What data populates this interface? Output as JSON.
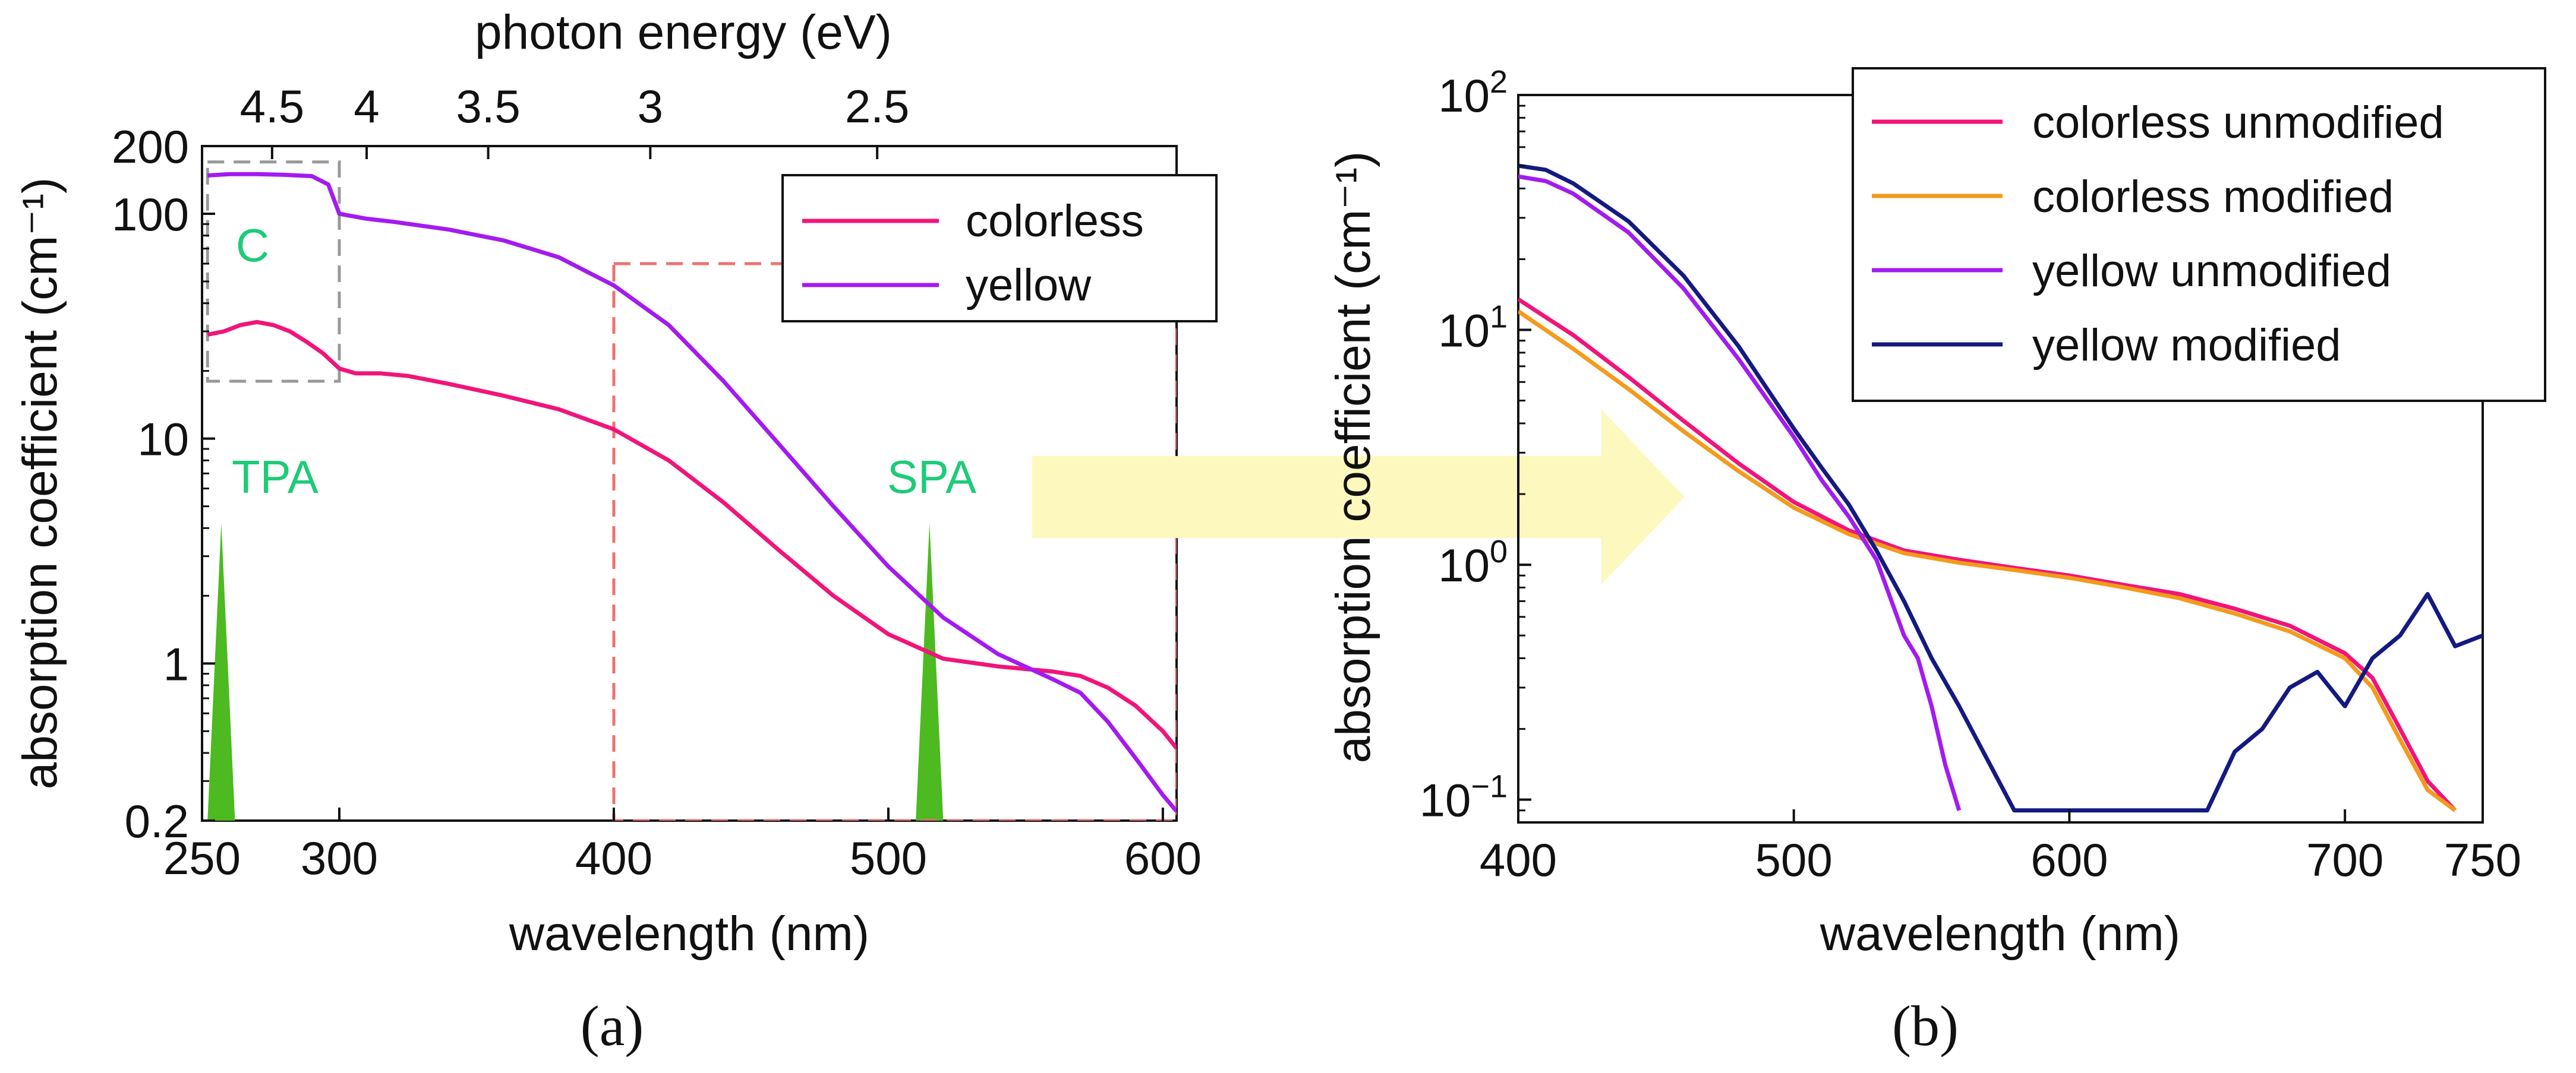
{
  "chart_data": [
    {
      "panel": "(a)",
      "type": "line",
      "xlabel": "wavelength (nm)",
      "ylabel": "absorption coefficient (cm⁻¹)",
      "top_axis_label": "photon energy (eV)",
      "yscale": "log",
      "xlim": [
        250,
        605
      ],
      "ylim": [
        0.2,
        200
      ],
      "x_ticks": [
        250,
        300,
        400,
        500,
        600
      ],
      "x_tick_labels": [
        "250",
        "300",
        "400",
        "500",
        "600"
      ],
      "y_ticks": [
        0.2,
        1,
        10,
        100,
        200
      ],
      "y_tick_labels": [
        "0.2",
        "1",
        "10",
        "100",
        "200"
      ],
      "top_ticks_eV": [
        4.5,
        4,
        3.5,
        3,
        2.5
      ],
      "top_tick_labels": [
        "4.5",
        "4",
        "3.5",
        "3",
        "2.5"
      ],
      "legend": [
        "colorless",
        "yellow"
      ],
      "legend_position": "top-right",
      "series": [
        {
          "name": "colorless",
          "color": "#f0157a",
          "x": [
            252,
            258,
            264,
            270,
            276,
            282,
            288,
            294,
            300,
            306,
            315,
            325,
            340,
            360,
            380,
            400,
            420,
            440,
            460,
            480,
            500,
            520,
            540,
            560,
            570,
            580,
            590,
            600,
            605
          ],
          "y": [
            29,
            30,
            32,
            33,
            32,
            30,
            27,
            24,
            20.5,
            19.5,
            19.5,
            19,
            17.5,
            15.5,
            13.5,
            11,
            8,
            5.2,
            3.2,
            2.0,
            1.35,
            1.05,
            0.97,
            0.92,
            0.88,
            0.78,
            0.65,
            0.5,
            0.42
          ]
        },
        {
          "name": "yellow",
          "color": "#a31bf0",
          "x": [
            252,
            260,
            270,
            280,
            290,
            296,
            300,
            310,
            320,
            340,
            360,
            380,
            400,
            420,
            440,
            460,
            480,
            500,
            520,
            540,
            560,
            570,
            580,
            590,
            600,
            605
          ],
          "y": [
            148,
            150,
            150,
            149,
            147,
            135,
            100,
            95,
            92,
            85,
            76,
            64,
            48,
            32,
            18,
            9.5,
            5.0,
            2.7,
            1.6,
            1.1,
            0.85,
            0.74,
            0.55,
            0.38,
            0.26,
            0.22
          ]
        }
      ],
      "annotations": [
        "C",
        "TPA",
        "SPA"
      ],
      "spectral_lines": [
        {
          "label": "TPA",
          "center_nm": 257,
          "peak": 4.2
        },
        {
          "label": "SPA",
          "center_nm": 515,
          "peak": 4.2
        }
      ],
      "boxes": [
        {
          "name": "C",
          "x": [
            252,
            300
          ],
          "y": [
            18,
            170
          ],
          "color": "#999999"
        },
        {
          "name": "zoom-region",
          "x": [
            400,
            605
          ],
          "y": [
            0.2,
            60
          ],
          "color": "#f07070"
        }
      ]
    },
    {
      "panel": "(b)",
      "type": "line",
      "xlabel": "wavelength (nm)",
      "ylabel": "absorption coefficient (cm⁻¹)",
      "yscale": "log",
      "xlim": [
        400,
        750
      ],
      "ylim": [
        0.08,
        100
      ],
      "x_ticks": [
        400,
        500,
        600,
        700,
        750
      ],
      "x_tick_labels": [
        "400",
        "500",
        "600",
        "700",
        "750"
      ],
      "y_ticks": [
        0.1,
        1,
        10,
        100
      ],
      "y_tick_bases": [
        "10",
        "10",
        "10",
        "10"
      ],
      "y_tick_exponents": [
        "−1",
        "0",
        "1",
        "2"
      ],
      "legend": [
        "colorless unmodified",
        "colorless modified",
        "yellow unmodified",
        "yellow modified"
      ],
      "legend_position": "top-right",
      "series": [
        {
          "name": "colorless unmodified",
          "color": "#f0157a",
          "x": [
            400,
            420,
            440,
            460,
            480,
            500,
            520,
            540,
            560,
            580,
            600,
            620,
            640,
            660,
            680,
            700,
            710,
            720,
            730,
            740
          ],
          "y": [
            13.5,
            9.5,
            6.3,
            4.1,
            2.7,
            1.85,
            1.4,
            1.15,
            1.05,
            0.97,
            0.9,
            0.82,
            0.75,
            0.65,
            0.55,
            0.42,
            0.33,
            0.2,
            0.12,
            0.09
          ]
        },
        {
          "name": "colorless modified",
          "color": "#f59a1a",
          "x": [
            400,
            420,
            440,
            460,
            480,
            500,
            520,
            540,
            560,
            580,
            600,
            620,
            640,
            660,
            680,
            700,
            710,
            720,
            730,
            740
          ],
          "y": [
            12,
            8.3,
            5.6,
            3.7,
            2.5,
            1.75,
            1.35,
            1.12,
            1.02,
            0.95,
            0.88,
            0.8,
            0.72,
            0.62,
            0.52,
            0.4,
            0.3,
            0.18,
            0.11,
            0.09
          ]
        },
        {
          "name": "yellow unmodified",
          "color": "#a31bf0",
          "x": [
            400,
            410,
            420,
            440,
            460,
            480,
            500,
            510,
            520,
            530,
            540,
            545,
            550,
            555,
            560
          ],
          "y": [
            45,
            43,
            38,
            26,
            15,
            7.5,
            3.5,
            2.3,
            1.6,
            1.05,
            0.5,
            0.4,
            0.25,
            0.14,
            0.09
          ]
        },
        {
          "name": "yellow modified",
          "color": "#141a80",
          "x": [
            400,
            410,
            420,
            440,
            460,
            480,
            500,
            510,
            520,
            530,
            540,
            550,
            560,
            570,
            580,
            650,
            660,
            670,
            680,
            690,
            700,
            710,
            720,
            730,
            740,
            750
          ],
          "y": [
            50,
            48,
            42,
            29,
            17,
            8.5,
            3.8,
            2.6,
            1.8,
            1.15,
            0.7,
            0.4,
            0.25,
            0.15,
            0.09,
            0.09,
            0.16,
            0.2,
            0.3,
            0.35,
            0.25,
            0.4,
            0.5,
            0.75,
            0.45,
            0.5
          ]
        }
      ]
    }
  ],
  "panel_labels": [
    "(a)",
    "(b)"
  ],
  "arrow_color": "#fdf8bd"
}
